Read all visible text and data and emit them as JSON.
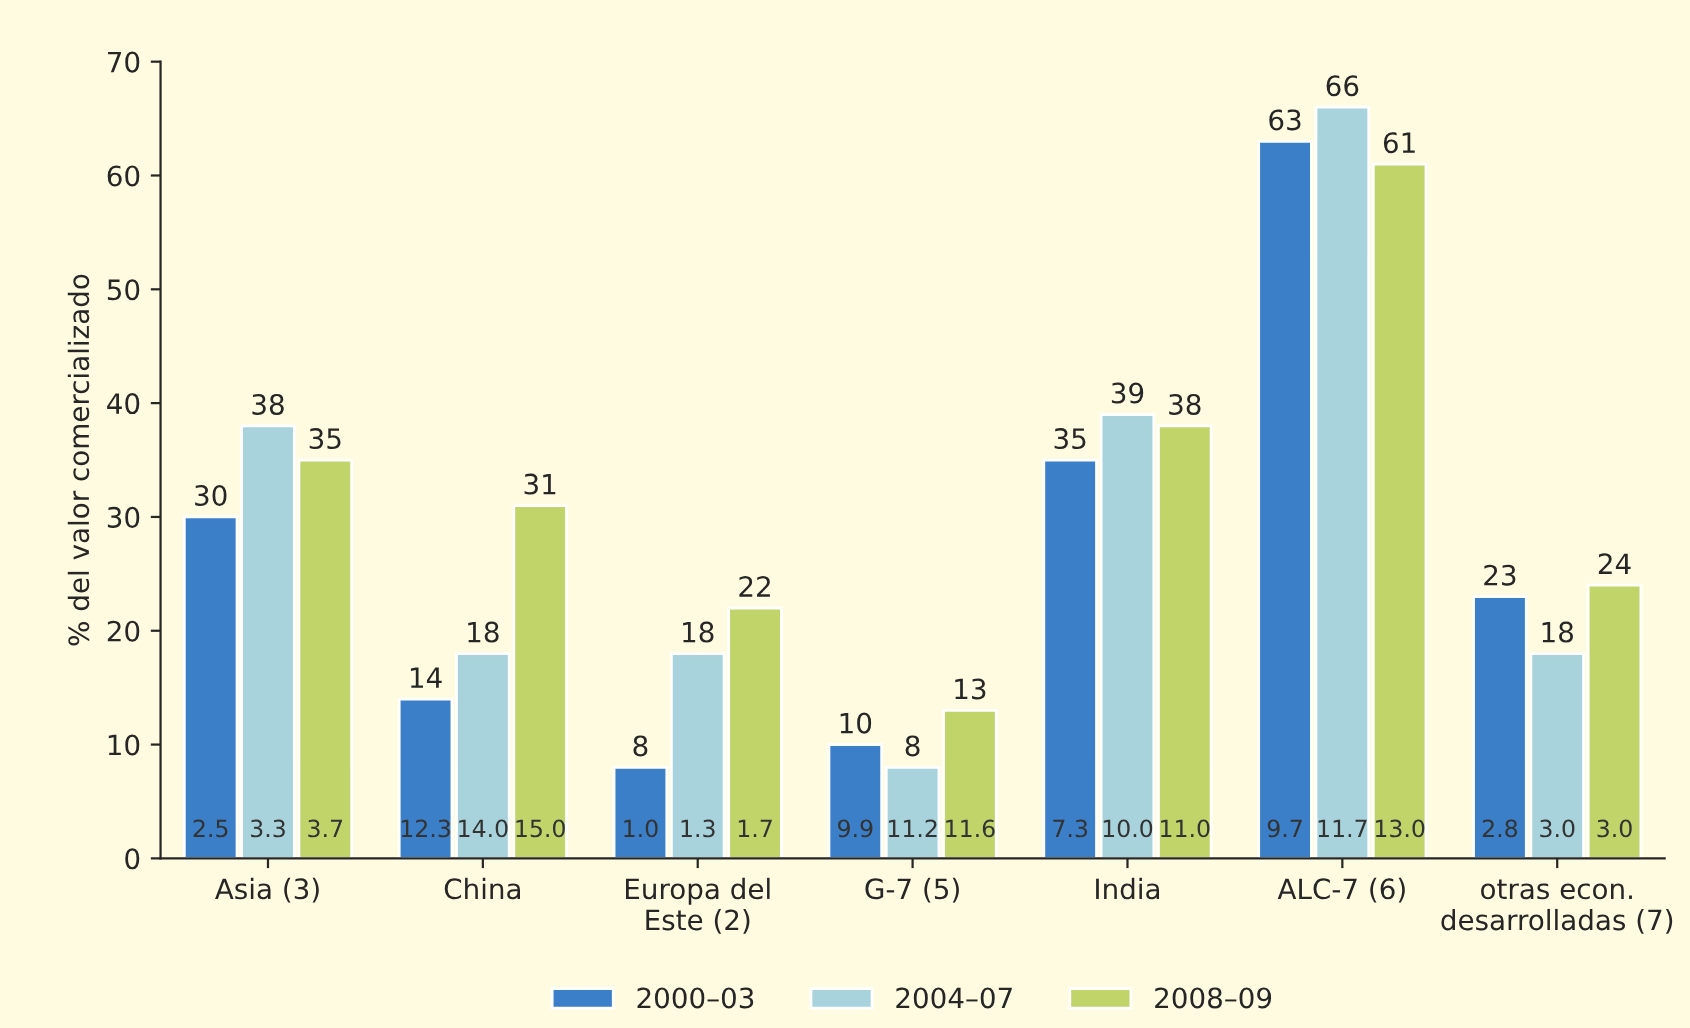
{
  "chart_data": {
    "type": "bar",
    "ylabel": "% del valor comercializado",
    "categories": [
      "Asia (3)",
      "China",
      "Europa del\nEste (2)",
      "G-7 (5)",
      "India",
      "ALC-7 (6)",
      "otras econ.\ndesarrolladas (7)"
    ],
    "series": [
      {
        "name": "2000–03",
        "color": "#3b7fc8",
        "values": [
          30,
          14,
          8,
          10,
          35,
          63,
          23
        ]
      },
      {
        "name": "2004–07",
        "color": "#a8d3dc",
        "values": [
          38,
          18,
          18,
          8,
          39,
          66,
          18
        ]
      },
      {
        "name": "2008–09",
        "color": "#c0d46a",
        "values": [
          35,
          31,
          22,
          13,
          38,
          61,
          24
        ]
      }
    ],
    "annotations": [
      "2.5",
      "3.3",
      "3.7",
      "12.3",
      "14.0",
      "15.0",
      "1.0",
      "1.3",
      "1.7",
      "9.9",
      "11.2",
      "11.6",
      "7.3",
      "10.0",
      "11.0",
      "9.7",
      "11.7",
      "13.0",
      "2.8",
      "3.0",
      "3.0"
    ],
    "data_labels": true,
    "ylim": [
      0,
      70
    ],
    "yticks": [
      0,
      10,
      20,
      30,
      40,
      50,
      60,
      70
    ],
    "grid": false,
    "legend": "bottom"
  }
}
